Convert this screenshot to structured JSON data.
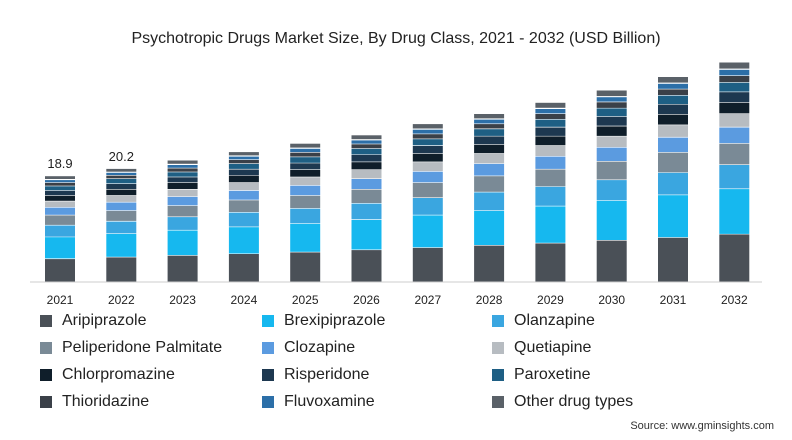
{
  "chart_data": {
    "type": "bar",
    "stacked": true,
    "title": "Psychotropic Drugs Market Size, By Drug Class, 2021 - 2032 (USD Billion)",
    "xlabel": "",
    "ylabel": "",
    "categories": [
      "2021",
      "2022",
      "2023",
      "2024",
      "2025",
      "2026",
      "2027",
      "2028",
      "2029",
      "2030",
      "2031",
      "2032"
    ],
    "ylim": [
      0,
      40
    ],
    "grid": false,
    "legend_position": "bottom",
    "data_labels": [
      {
        "category": "2021",
        "text": "18.9"
      },
      {
        "category": "2022",
        "text": "20.2"
      }
    ],
    "series": [
      {
        "name": "Aripiprazole",
        "color": "#4a5057",
        "values": [
          4.2,
          4.5,
          4.8,
          5.1,
          5.4,
          5.8,
          6.2,
          6.6,
          7.0,
          7.5,
          8.0,
          8.6
        ]
      },
      {
        "name": "Brexipiprazole",
        "color": "#16b8ef",
        "values": [
          3.9,
          4.2,
          4.5,
          4.8,
          5.1,
          5.4,
          5.8,
          6.2,
          6.6,
          7.1,
          7.6,
          8.1
        ]
      },
      {
        "name": "Olanzapine",
        "color": "#3aa6e0",
        "values": [
          2.1,
          2.2,
          2.4,
          2.6,
          2.7,
          2.9,
          3.1,
          3.3,
          3.5,
          3.7,
          4.0,
          4.3
        ]
      },
      {
        "name": "Peliperidone Palmitate",
        "color": "#7a8a96",
        "values": [
          1.8,
          1.9,
          2.0,
          2.2,
          2.3,
          2.5,
          2.7,
          2.9,
          3.1,
          3.3,
          3.6,
          3.8
        ]
      },
      {
        "name": "Clozapine",
        "color": "#5b9be0",
        "values": [
          1.4,
          1.5,
          1.6,
          1.7,
          1.8,
          1.9,
          2.0,
          2.2,
          2.3,
          2.5,
          2.7,
          2.9
        ]
      },
      {
        "name": "Quetiapine",
        "color": "#b7bcc1",
        "values": [
          1.1,
          1.2,
          1.3,
          1.4,
          1.5,
          1.6,
          1.7,
          1.8,
          1.9,
          2.0,
          2.2,
          2.4
        ]
      },
      {
        "name": "Chlorpromazine",
        "color": "#0f1e2a",
        "values": [
          1.0,
          1.1,
          1.2,
          1.3,
          1.3,
          1.4,
          1.5,
          1.6,
          1.7,
          1.8,
          1.9,
          2.0
        ]
      },
      {
        "name": "Risperidone",
        "color": "#1d3850",
        "values": [
          0.9,
          1.0,
          1.0,
          1.1,
          1.2,
          1.3,
          1.4,
          1.5,
          1.6,
          1.7,
          1.8,
          1.9
        ]
      },
      {
        "name": "Paroxetine",
        "color": "#1e5f84",
        "values": [
          0.8,
          0.9,
          0.9,
          1.0,
          1.1,
          1.1,
          1.2,
          1.3,
          1.4,
          1.5,
          1.6,
          1.7
        ]
      },
      {
        "name": "Thioridazine",
        "color": "#3a4048",
        "values": [
          0.6,
          0.6,
          0.7,
          0.7,
          0.8,
          0.8,
          0.9,
          0.9,
          1.0,
          1.1,
          1.1,
          1.2
        ]
      },
      {
        "name": "Fluvoxamine",
        "color": "#2c6fa8",
        "values": [
          0.5,
          0.5,
          0.6,
          0.6,
          0.7,
          0.7,
          0.8,
          0.8,
          0.9,
          0.9,
          1.0,
          1.1
        ]
      },
      {
        "name": "Other drug types",
        "color": "#5a6168",
        "values": [
          0.6,
          0.6,
          0.7,
          0.7,
          0.8,
          0.8,
          0.9,
          0.9,
          1.0,
          1.1,
          1.1,
          1.2
        ]
      }
    ]
  },
  "source": "Source: www.gminsights.com"
}
